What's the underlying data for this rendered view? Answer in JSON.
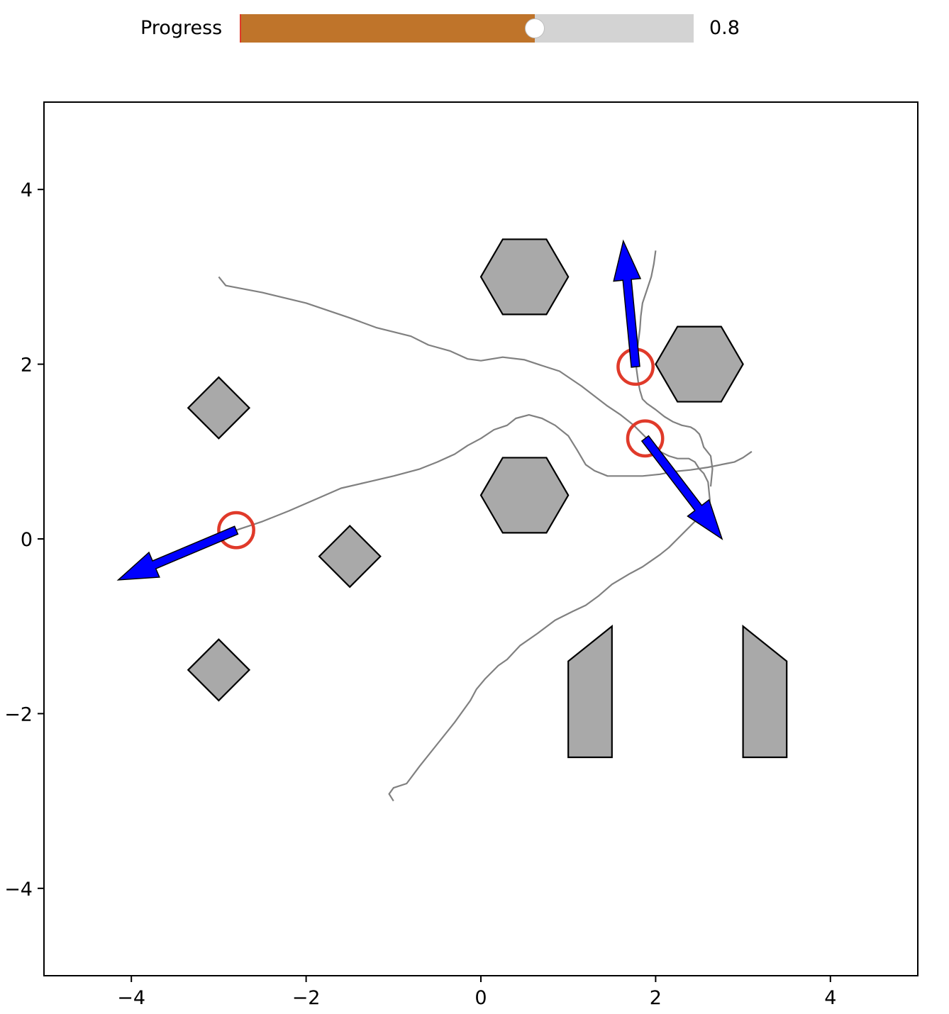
{
  "slider": {
    "label": "Progress",
    "value": 0.8,
    "value_text": "0.8",
    "min": 0.0,
    "max": 1.0,
    "fill_color": "#bf742a",
    "track_color": "#d3d3d3"
  },
  "chart_data": {
    "type": "scatter",
    "title": "",
    "xlabel": "",
    "ylabel": "",
    "xlim": [
      -5,
      5
    ],
    "ylim": [
      -5,
      5
    ],
    "grid": false,
    "xticks": [
      -4,
      -2,
      0,
      2,
      4
    ],
    "xtick_labels": [
      "−4",
      "−2",
      "0",
      "2",
      "4"
    ],
    "yticks": [
      4,
      2,
      0,
      -2,
      -4
    ],
    "ytick_labels": [
      "4",
      "2",
      "0",
      "−2",
      "−4"
    ],
    "colors": {
      "obstacle_fill": "#a9a9a9",
      "obstacle_edge": "#000000",
      "trajectory": "#808080",
      "agent_circle": "#e03a2a",
      "velocity_arrow": "#0000ff"
    },
    "obstacles": [
      {
        "shape": "diamond",
        "points": [
          [
            -3,
            1.85
          ],
          [
            -2.65,
            1.5
          ],
          [
            -3,
            1.15
          ],
          [
            -3.35,
            1.5
          ]
        ]
      },
      {
        "shape": "diamond",
        "points": [
          [
            -3,
            -1.15
          ],
          [
            -2.65,
            -1.5
          ],
          [
            -3,
            -1.85
          ],
          [
            -3.35,
            -1.5
          ]
        ]
      },
      {
        "shape": "diamond",
        "points": [
          [
            -1.5,
            0.15
          ],
          [
            -1.15,
            -0.2
          ],
          [
            -1.5,
            -0.55
          ],
          [
            -1.85,
            -0.2
          ]
        ]
      },
      {
        "shape": "hexagon",
        "points": [
          [
            1.0,
            3.0
          ],
          [
            0.75,
            3.43
          ],
          [
            0.25,
            3.43
          ],
          [
            0.0,
            3.0
          ],
          [
            0.25,
            2.57
          ],
          [
            0.75,
            2.57
          ]
        ]
      },
      {
        "shape": "hexagon",
        "points": [
          [
            3.0,
            2.0
          ],
          [
            2.75,
            2.43
          ],
          [
            2.25,
            2.43
          ],
          [
            2.0,
            2.0
          ],
          [
            2.25,
            1.57
          ],
          [
            2.75,
            1.57
          ]
        ]
      },
      {
        "shape": "hexagon",
        "points": [
          [
            1.0,
            0.5
          ],
          [
            0.75,
            0.93
          ],
          [
            0.25,
            0.93
          ],
          [
            0.0,
            0.5
          ],
          [
            0.25,
            0.07
          ],
          [
            0.75,
            0.07
          ]
        ]
      },
      {
        "shape": "polygon",
        "points": [
          [
            1.0,
            -2.5
          ],
          [
            1.0,
            -1.4
          ],
          [
            1.5,
            -1.0
          ],
          [
            1.5,
            -2.5
          ]
        ]
      },
      {
        "shape": "polygon",
        "points": [
          [
            3.0,
            -2.5
          ],
          [
            3.0,
            -1.0
          ],
          [
            3.5,
            -1.4
          ],
          [
            3.5,
            -2.5
          ]
        ]
      }
    ],
    "series": [
      {
        "x": [
          -3.0,
          -2.92,
          -2.5,
          -2.0,
          -1.5,
          -1.2,
          -0.8,
          -0.6,
          -0.35,
          -0.15,
          0.0,
          0.25,
          0.5,
          0.65,
          0.9,
          1.15,
          1.45,
          1.6,
          1.75,
          1.85,
          1.95,
          2.05,
          2.15,
          2.25,
          2.38,
          2.45,
          2.5,
          2.55,
          2.6,
          2.62,
          2.62,
          2.55,
          2.45,
          2.35,
          2.25,
          2.15,
          2.05,
          1.95,
          1.85,
          1.7,
          1.5,
          1.35,
          1.2,
          1.05,
          0.85,
          0.65,
          0.45,
          0.3,
          0.2,
          0.05,
          -0.05,
          -0.12,
          -0.3,
          -0.5,
          -0.7,
          -0.85,
          -1.0,
          -1.05,
          -1.0
        ],
        "y": [
          3.0,
          2.9,
          2.82,
          2.7,
          2.53,
          2.42,
          2.32,
          2.22,
          2.15,
          2.06,
          2.04,
          2.08,
          2.05,
          2.0,
          1.92,
          1.75,
          1.52,
          1.42,
          1.3,
          1.2,
          1.1,
          1.0,
          0.95,
          0.92,
          0.92,
          0.88,
          0.8,
          0.75,
          0.65,
          0.45,
          0.3,
          0.25,
          0.2,
          0.1,
          0.0,
          -0.1,
          -0.18,
          -0.25,
          -0.32,
          -0.4,
          -0.52,
          -0.65,
          -0.76,
          -0.83,
          -0.93,
          -1.08,
          -1.22,
          -1.38,
          -1.45,
          -1.6,
          -1.72,
          -1.85,
          -2.1,
          -2.35,
          -2.6,
          -2.8,
          -2.85,
          -2.92,
          -3.0
        ]
      },
      {
        "x": [
          -2.8,
          -2.5,
          -2.2,
          -1.9,
          -1.6,
          -1.3,
          -1.0,
          -0.7,
          -0.5,
          -0.3,
          -0.15,
          0.0,
          0.15,
          0.3,
          0.4,
          0.55,
          0.7,
          0.85,
          1.0,
          1.1,
          1.2,
          1.3,
          1.45,
          1.65,
          1.85,
          2.05,
          2.2,
          2.4,
          2.6,
          2.8,
          2.9,
          3.0,
          3.1
        ],
        "y": [
          0.1,
          0.2,
          0.32,
          0.45,
          0.58,
          0.65,
          0.72,
          0.8,
          0.88,
          0.97,
          1.07,
          1.15,
          1.25,
          1.3,
          1.38,
          1.42,
          1.38,
          1.3,
          1.18,
          1.02,
          0.85,
          0.78,
          0.72,
          0.72,
          0.72,
          0.74,
          0.77,
          0.79,
          0.82,
          0.86,
          0.88,
          0.93,
          1.0
        ]
      },
      {
        "x": [
          2.0,
          1.98,
          1.95,
          1.9,
          1.85,
          1.83,
          1.82,
          1.8,
          1.78,
          1.78,
          1.8,
          1.82,
          1.85,
          1.9,
          2.0,
          2.1,
          2.2,
          2.3,
          2.4,
          2.45,
          2.5,
          2.52,
          2.55,
          2.63,
          2.65,
          2.63
        ],
        "y": [
          3.3,
          3.15,
          3.0,
          2.85,
          2.7,
          2.55,
          2.4,
          2.25,
          2.1,
          1.95,
          1.8,
          1.7,
          1.6,
          1.55,
          1.48,
          1.4,
          1.34,
          1.3,
          1.28,
          1.25,
          1.2,
          1.15,
          1.05,
          0.95,
          0.8,
          0.6
        ]
      }
    ],
    "agents": [
      {
        "x": -2.8,
        "y": 0.1,
        "radius": 0.2,
        "vx": -1.35,
        "vy": -0.57
      },
      {
        "x": 1.77,
        "y": 1.97,
        "radius": 0.2,
        "vx": -0.14,
        "vy": 1.44
      },
      {
        "x": 1.88,
        "y": 1.15,
        "radius": 0.2,
        "vx": 0.88,
        "vy": -1.15
      }
    ]
  }
}
